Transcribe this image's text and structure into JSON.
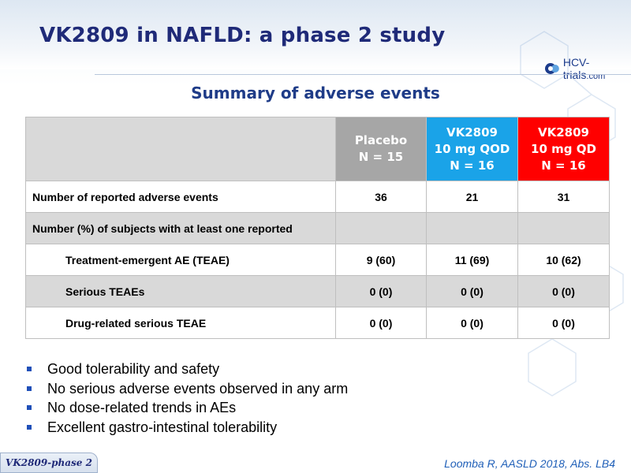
{
  "slide": {
    "title": "VK2809 in NAFLD: a phase 2 study",
    "logo": {
      "brand": "HCV-trials",
      "tld": ".com"
    },
    "subtitle": "Summary of adverse events"
  },
  "table": {
    "columns": [
      {
        "lines": [
          "Placebo",
          "N = 15"
        ],
        "color": "#a6a6a6"
      },
      {
        "lines": [
          "VK2809",
          "10 mg QOD",
          "N = 16"
        ],
        "color": "#1aa3e8"
      },
      {
        "lines": [
          "VK2809",
          "10 mg QD",
          "N = 16"
        ],
        "color": "#ff0000"
      }
    ],
    "rows": [
      {
        "label": "Number of reported adverse events",
        "values": [
          "36",
          "21",
          "31"
        ]
      },
      {
        "label": "Number (%) of subjects with at least one reported",
        "values": [
          "",
          "",
          ""
        ]
      },
      {
        "label": "Treatment-emergent AE (TEAE)",
        "values": [
          "9 (60)",
          "11 (69)",
          "10 (62)"
        ]
      },
      {
        "label": "Serious TEAEs",
        "values": [
          "0 (0)",
          "0 (0)",
          "0 (0)"
        ]
      },
      {
        "label": "Drug-related serious TEAE",
        "values": [
          "0 (0)",
          "0 (0)",
          "0 (0)"
        ]
      }
    ]
  },
  "bullets": [
    "Good tolerability and safety",
    "No serious adverse events observed in any arm",
    "No dose-related trends in AEs",
    "Excellent gastro-intestinal tolerability"
  ],
  "footer": {
    "tag": "VK2809-phase 2",
    "citation": "Loomba R, AASLD 2018, Abs. LB4"
  },
  "colors": {
    "title": "#1f2a78",
    "subtitle": "#1f3c88",
    "bullet": "#1f4fb8",
    "citation": "#1f5fb8"
  }
}
